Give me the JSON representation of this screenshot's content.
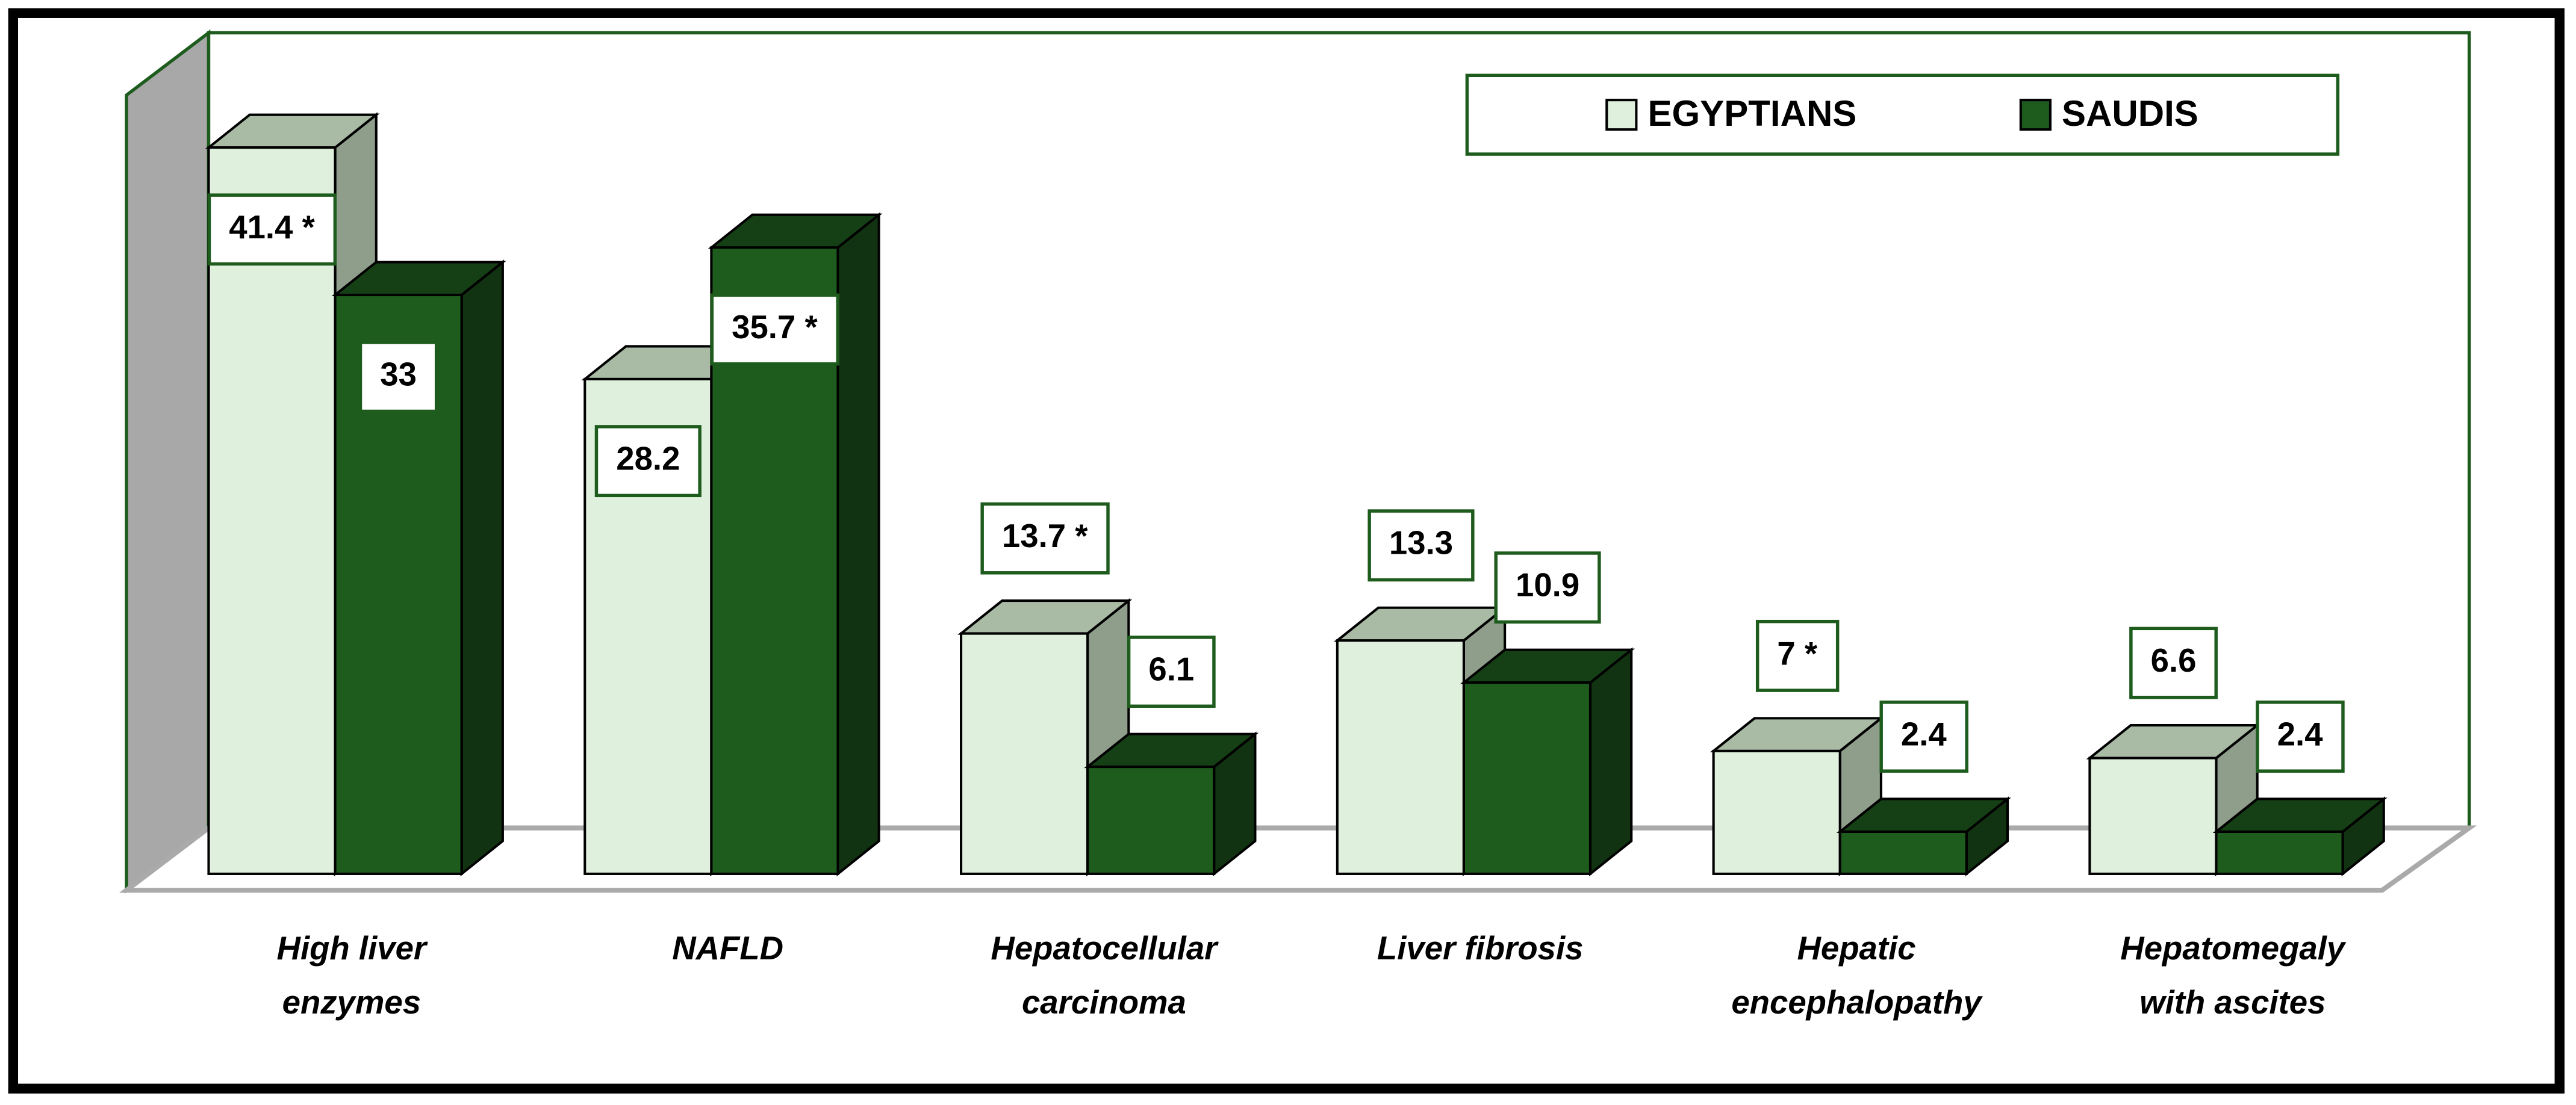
{
  "chart_data": {
    "type": "bar3d",
    "categories": [
      "High liver enzymes",
      "NAFLD",
      "Hepatocellular carcinoma",
      "Liver fibrosis",
      "Hepatic encephalopathy",
      "Hepatomegaly with ascites"
    ],
    "series": [
      {
        "name": "EGYPTIANS",
        "color": "#dff0dc",
        "values": [
          41.4,
          28.2,
          13.7,
          13.3,
          7,
          6.6
        ],
        "value_labels": [
          "41.4 *",
          "28.2",
          "13.7 *",
          "13.3",
          "7 *",
          "6.6"
        ]
      },
      {
        "name": "SAUDIS",
        "color": "#1e5c1e",
        "values": [
          33,
          35.7,
          6.1,
          10.9,
          2.4,
          2.4
        ],
        "value_labels": [
          "33",
          "35.7 *",
          "6.1",
          "10.9",
          "2.4",
          "2.4"
        ]
      }
    ],
    "legend": "top-right"
  }
}
